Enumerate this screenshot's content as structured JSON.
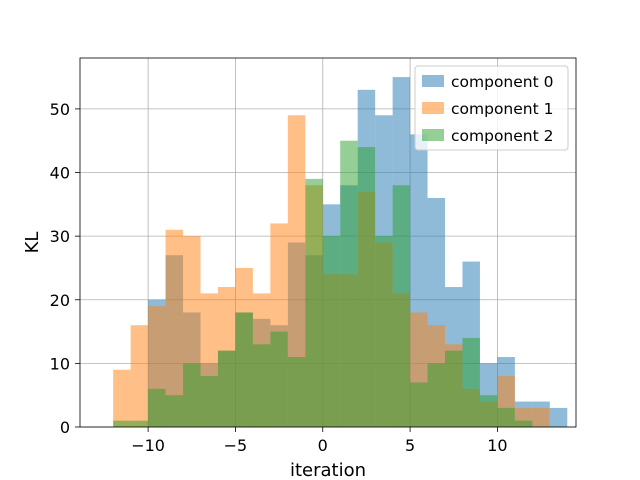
{
  "chart_data": {
    "type": "bar",
    "subtype": "overlaid-histogram",
    "xlabel": "iteration",
    "ylabel": "KL",
    "xlim": [
      -13.9,
      14.5
    ],
    "ylim": [
      0,
      58
    ],
    "xticks": [
      -10,
      -5,
      0,
      5,
      10
    ],
    "xtick_labels": [
      "−10",
      "−5",
      "0",
      "5",
      "10"
    ],
    "yticks": [
      0,
      10,
      20,
      30,
      40,
      50
    ],
    "ytick_labels": [
      "0",
      "10",
      "20",
      "30",
      "40",
      "50"
    ],
    "grid": true,
    "legend_position": "top-right",
    "bar_opacity": 0.5,
    "series": [
      {
        "name": "component 0",
        "color": "#1f77b4",
        "bins": [
          [
            -10.0,
            -9.0,
            20
          ],
          [
            -9.0,
            -8.0,
            27
          ],
          [
            -8.0,
            -7.0,
            18
          ],
          [
            -7.0,
            -6.0,
            10
          ],
          [
            -6.0,
            -5.0,
            12
          ],
          [
            -5.0,
            -4.0,
            18
          ],
          [
            -4.0,
            -3.0,
            17
          ],
          [
            -3.0,
            -2.0,
            16
          ],
          [
            -2.0,
            -1.0,
            29
          ],
          [
            -1.0,
            0.0,
            27
          ],
          [
            0.0,
            1.0,
            35
          ],
          [
            1.0,
            2.0,
            38
          ],
          [
            2.0,
            3.0,
            53
          ],
          [
            3.0,
            4.0,
            49
          ],
          [
            4.0,
            5.0,
            55
          ],
          [
            5.0,
            6.0,
            46
          ],
          [
            6.0,
            7.0,
            36
          ],
          [
            7.0,
            8.0,
            22
          ],
          [
            8.0,
            9.0,
            26
          ],
          [
            9.0,
            10.0,
            10
          ],
          [
            10.0,
            11.0,
            11
          ],
          [
            11.0,
            12.0,
            4
          ],
          [
            12.0,
            13.0,
            4
          ],
          [
            13.0,
            14.0,
            3
          ]
        ]
      },
      {
        "name": "component 1",
        "color": "#ff7f0e",
        "bins": [
          [
            -12.0,
            -11.0,
            9
          ],
          [
            -11.0,
            -10.0,
            16
          ],
          [
            -10.0,
            -9.0,
            19
          ],
          [
            -9.0,
            -8.0,
            31
          ],
          [
            -8.0,
            -7.0,
            30
          ],
          [
            -7.0,
            -6.0,
            21
          ],
          [
            -6.0,
            -5.0,
            22
          ],
          [
            -5.0,
            -4.0,
            25
          ],
          [
            -4.0,
            -3.0,
            21
          ],
          [
            -3.0,
            -2.0,
            32
          ],
          [
            -2.0,
            -1.0,
            49
          ],
          [
            -1.0,
            0.0,
            38
          ],
          [
            0.0,
            1.0,
            24
          ],
          [
            1.0,
            2.0,
            24
          ],
          [
            2.0,
            3.0,
            37
          ],
          [
            3.0,
            4.0,
            29
          ],
          [
            4.0,
            5.0,
            21
          ],
          [
            5.0,
            6.0,
            18
          ],
          [
            6.0,
            7.0,
            16
          ],
          [
            7.0,
            8.0,
            13
          ],
          [
            8.0,
            9.0,
            6
          ],
          [
            9.0,
            10.0,
            4
          ],
          [
            10.0,
            11.0,
            8
          ],
          [
            11.0,
            12.0,
            3
          ],
          [
            12.0,
            13.0,
            3
          ]
        ]
      },
      {
        "name": "component 2",
        "color": "#2ca02c",
        "bins": [
          [
            -12.0,
            -11.0,
            1
          ],
          [
            -11.0,
            -10.0,
            1
          ],
          [
            -10.0,
            -9.0,
            6
          ],
          [
            -9.0,
            -8.0,
            5
          ],
          [
            -8.0,
            -7.0,
            10
          ],
          [
            -7.0,
            -6.0,
            8
          ],
          [
            -6.0,
            -5.0,
            12
          ],
          [
            -5.0,
            -4.0,
            18
          ],
          [
            -4.0,
            -3.0,
            13
          ],
          [
            -3.0,
            -2.0,
            15
          ],
          [
            -2.0,
            -1.0,
            11
          ],
          [
            -1.0,
            0.0,
            39
          ],
          [
            0.0,
            1.0,
            30
          ],
          [
            1.0,
            2.0,
            45
          ],
          [
            2.0,
            3.0,
            44
          ],
          [
            3.0,
            4.0,
            30
          ],
          [
            4.0,
            5.0,
            38
          ],
          [
            5.0,
            6.0,
            7
          ],
          [
            6.0,
            7.0,
            10
          ],
          [
            7.0,
            8.0,
            12
          ],
          [
            8.0,
            9.0,
            14
          ],
          [
            9.0,
            10.0,
            5
          ],
          [
            10.0,
            11.0,
            3
          ],
          [
            11.0,
            12.0,
            1
          ]
        ]
      }
    ]
  }
}
